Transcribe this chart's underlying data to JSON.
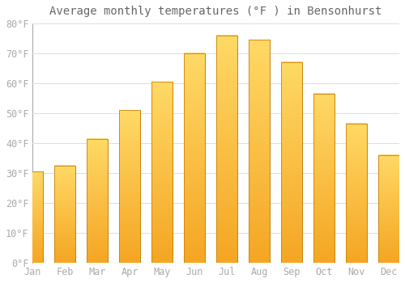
{
  "title": "Average monthly temperatures (°F ) in Bensonhurst",
  "months": [
    "Jan",
    "Feb",
    "Mar",
    "Apr",
    "May",
    "Jun",
    "Jul",
    "Aug",
    "Sep",
    "Oct",
    "Nov",
    "Dec"
  ],
  "values": [
    30.5,
    32.5,
    41.5,
    51.0,
    60.5,
    70.0,
    76.0,
    74.5,
    67.0,
    56.5,
    46.5,
    36.0
  ],
  "bar_color_bottom": "#F5A623",
  "bar_color_top": "#FFD966",
  "bar_edge_color": "#C8840A",
  "background_color": "#FFFFFF",
  "plot_bg_color": "#FFFFFF",
  "grid_color": "#DDDDDD",
  "text_color": "#AAAAAA",
  "title_color": "#666666",
  "ylim": [
    0,
    80
  ],
  "yticks": [
    0,
    10,
    20,
    30,
    40,
    50,
    60,
    70,
    80
  ],
  "title_fontsize": 10,
  "tick_fontsize": 8.5,
  "bar_width": 0.65
}
